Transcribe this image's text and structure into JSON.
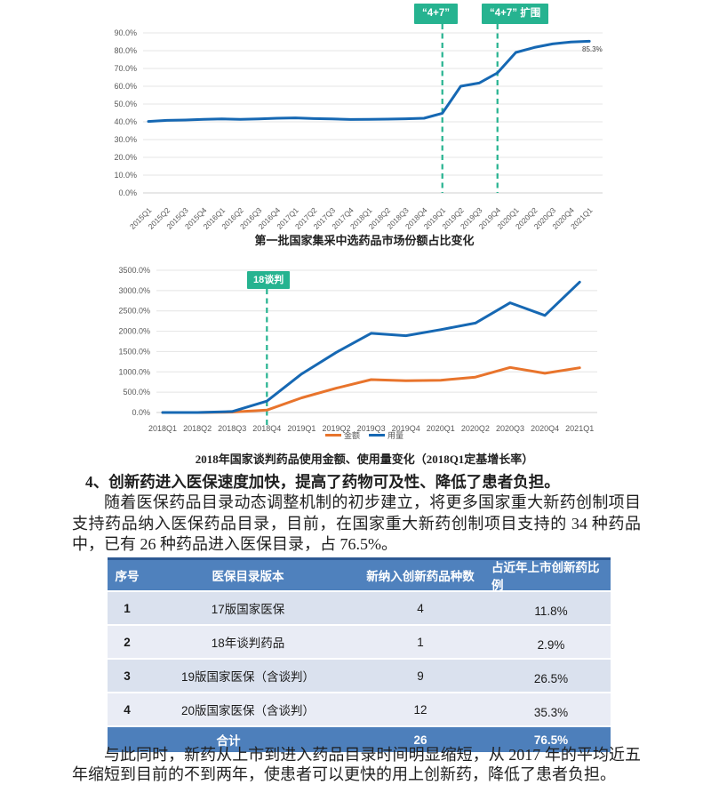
{
  "chart_data": [
    {
      "type": "line",
      "caption": "第一批国家集采中选药品市场份额占比变化",
      "categories": [
        "2015Q1",
        "2015Q2",
        "2015Q3",
        "2015Q4",
        "2016Q1",
        "2016Q2",
        "2016Q3",
        "2016Q4",
        "2017Q1",
        "2017Q2",
        "2017Q3",
        "2017Q4",
        "2018Q1",
        "2018Q2",
        "2018Q3",
        "2018Q4",
        "2019Q1",
        "2019Q2",
        "2019Q3",
        "2019Q4",
        "2020Q1",
        "2020Q2",
        "2020Q3",
        "2020Q4",
        "2021Q1"
      ],
      "series": [
        {
          "name": "中选药品市场份额",
          "color": "#1668b3",
          "values": [
            40.2,
            40.8,
            41.0,
            41.4,
            41.6,
            41.4,
            41.6,
            42.0,
            42.2,
            41.8,
            41.6,
            41.3,
            41.4,
            41.5,
            41.7,
            42.0,
            44.8,
            60.0,
            61.8,
            67.5,
            79.0,
            81.8,
            83.8,
            84.9,
            85.3
          ]
        }
      ],
      "ylim": [
        0,
        90
      ],
      "ytick_step": 10,
      "grid": true,
      "legend_position": "none",
      "annotations": [
        {
          "label": "“4+7”",
          "category": "2019Q1"
        },
        {
          "label": "“4+7” 扩围",
          "category": "2019Q4"
        }
      ],
      "end_label": "85.3%"
    },
    {
      "type": "line",
      "caption": "2018年国家谈判药品使用金额、使用量变化（2018Q1定基增长率）",
      "categories": [
        "2018Q1",
        "2018Q2",
        "2018Q3",
        "2018Q4",
        "2019Q1",
        "2019Q2",
        "2019Q3",
        "2019Q4",
        "2020Q1",
        "2020Q2",
        "2020Q3",
        "2020Q4",
        "2021Q1"
      ],
      "series": [
        {
          "name": "金额",
          "color": "#e8742c",
          "values": [
            0,
            0,
            10,
            60,
            360,
            600,
            810,
            780,
            795,
            870,
            1110,
            965,
            1100
          ]
        },
        {
          "name": "用量",
          "color": "#1668b3",
          "values": [
            0,
            0,
            25,
            280,
            950,
            1480,
            1950,
            1890,
            2040,
            2200,
            2700,
            2390,
            3210
          ]
        }
      ],
      "ylim": [
        0,
        3500
      ],
      "ytick_step": 500,
      "grid": true,
      "legend_position": "bottom",
      "annotations": [
        {
          "label": "18谈判",
          "category": "2018Q4"
        }
      ]
    }
  ],
  "section": {
    "heading": "4、创新药进入医保速度加快，提高了药物可及性、降低了患者负担。",
    "paragraph1": "随着医保药品目录动态调整机制的初步建立，将更多国家重大新药创制项目支持药品纳入医保药品目录，目前，在国家重大新药创制项目支持的 34 种药品中，已有 26 种药品进入医保目录，占 76.5%。",
    "paragraph2": "与此同时，新药从上市到进入药品目录时间明显缩短，从 2017 年的平均近五年缩短到目前的不到两年，使患者可以更快的用上创新药，降低了患者负担。"
  },
  "table": {
    "headers": [
      "序号",
      "医保目录版本",
      "新纳入创新药品种数",
      "占近年上市创新药比例"
    ],
    "rows": [
      [
        "1",
        "17版国家医保",
        "4",
        "11.8%"
      ],
      [
        "2",
        "18年谈判药品",
        "1",
        "2.9%"
      ],
      [
        "3",
        "19版国家医保（含谈判）",
        "9",
        "26.5%"
      ],
      [
        "4",
        "20版国家医保（含谈判）",
        "12",
        "35.3%"
      ]
    ],
    "total": {
      "label": "合计",
      "count": "26",
      "percent": "76.5%"
    }
  },
  "colors": {
    "annotation_teal": "#26b390",
    "line_blue": "#1668b3",
    "line_orange": "#e8742c",
    "table_header": "#4f81bd",
    "table_header_border": "#2e5a94",
    "table_row_dark": "#dae1ee",
    "table_row_light": "#e9ecf5",
    "table_total": "#4d7fbb",
    "gridline": "#e4e4e4"
  }
}
